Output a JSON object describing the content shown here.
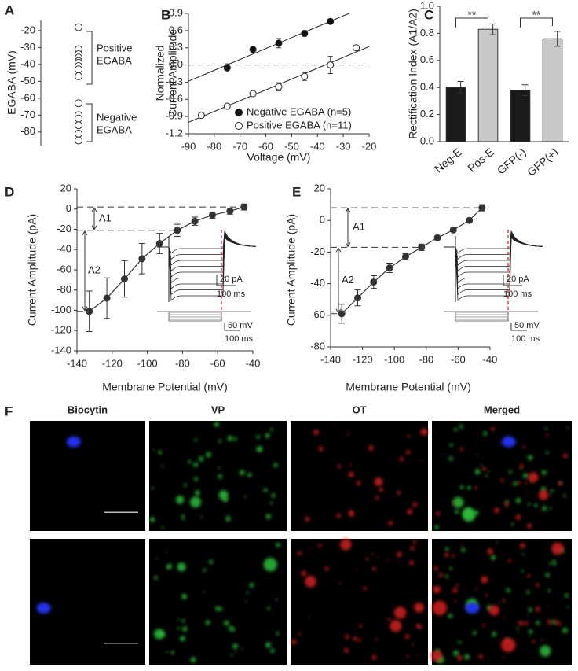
{
  "chart_data": [
    {
      "type": "strip",
      "panel": "A",
      "ylabel": "EGABA (mV)",
      "values": [
        -18,
        -31,
        -34,
        -36,
        -38,
        -39,
        -41,
        -43,
        -47,
        -63,
        -70,
        -72,
        -76,
        -81,
        -85
      ],
      "ylim": [
        -88,
        -14
      ],
      "yticks": [
        -20,
        -30,
        -40,
        -50,
        -60,
        -70,
        -80
      ],
      "annotations": [
        "Positive",
        "EGABA",
        "Negative",
        "EGABA"
      ]
    },
    {
      "type": "scatter",
      "panel": "B",
      "xlabel": "Voltage (mV)",
      "ylabel": [
        "Normalized",
        "Current Amplitude"
      ],
      "xlim": [
        -90,
        -20
      ],
      "xticks": [
        -90,
        -80,
        -70,
        -60,
        -50,
        -40,
        -30,
        -20
      ],
      "ylim": [
        -1.2,
        0.9
      ],
      "yticks": [
        0.9,
        0.6,
        0.3,
        {
          "value": 0,
          "label": "0.0"
        },
        -0.3,
        -0.6,
        -0.9,
        -1.2
      ],
      "series": [
        {
          "name": "Negative EGABA (n=5)",
          "color": "#111111",
          "x": [
            -75,
            -65,
            -55,
            -45,
            -35
          ],
          "values": [
            -0.05,
            0.27,
            0.38,
            0.55,
            0.76
          ],
          "errors": [
            0.07,
            0.04,
            0.08,
            0.05,
            0.04
          ]
        },
        {
          "name": "Positive EGABA (n=11)",
          "color": "#ffffff",
          "x": [
            -85,
            -75,
            -65,
            -55,
            -45,
            -35,
            -25
          ],
          "values": [
            -0.88,
            -0.72,
            -0.5,
            -0.38,
            -0.2,
            0.0,
            0.3
          ],
          "errors": [
            0.03,
            0.04,
            0.04,
            0.07,
            0.07,
            0.15,
            0.04
          ]
        }
      ]
    },
    {
      "type": "bar",
      "panel": "C",
      "ylabel": "Rectification Index (A1/A2)",
      "categories": [
        "Neg-E",
        "Pos-E",
        "GFP(-)",
        "GFP(+)"
      ],
      "values": [
        0.4,
        0.83,
        0.38,
        0.76
      ],
      "errors": [
        0.045,
        0.04,
        0.04,
        0.055
      ],
      "colors": [
        "#1a1a1a",
        "#c8c8c8",
        "#1a1a1a",
        "#c8c8c8"
      ],
      "ylim": [
        0,
        1
      ],
      "yticks": [
        {
          "value": 0,
          "label": "0.0"
        },
        0.2,
        0.4,
        0.6,
        0.8,
        {
          "value": 1,
          "label": "1.0"
        }
      ],
      "annotations": [
        "**",
        "**"
      ]
    },
    {
      "type": "line",
      "panel": "D",
      "xlabel": "Membrane Potential (mV)",
      "ylabel": "Current Amplitude (pA)",
      "color": "#333333",
      "x": [
        -133,
        -123,
        -113,
        -103,
        -93,
        -83,
        -73,
        -63,
        -53,
        -45
      ],
      "values": [
        -101,
        -88,
        -69,
        -49,
        -34,
        -21,
        -12,
        -6,
        -2,
        2
      ],
      "errors": [
        20,
        20,
        18,
        15,
        10,
        6,
        4,
        3,
        3,
        3
      ],
      "xlim": [
        -140,
        -40
      ],
      "xticks": [
        -140,
        -120,
        -100,
        -80,
        -60,
        -40
      ],
      "ylim": [
        -140,
        20
      ],
      "yticks": [
        20,
        0,
        -20,
        -40,
        -60,
        -80,
        -100,
        -120,
        -140
      ],
      "annotations": [
        "A1",
        "A2",
        "20 pA",
        "100 ms",
        "50 mV",
        "100 ms"
      ]
    },
    {
      "type": "line",
      "panel": "E",
      "xlabel": "Membrane Potential (mV)",
      "ylabel": "Current Amplitude (pA)",
      "color": "#333333",
      "x": [
        -133,
        -123,
        -113,
        -103,
        -93,
        -83,
        -73,
        -63,
        -53,
        -45
      ],
      "values": [
        -59,
        -49,
        -39,
        -30,
        -23,
        -17,
        -11,
        -6,
        0,
        8
      ],
      "errors": [
        6,
        5,
        4,
        3,
        2,
        2,
        1,
        1,
        1,
        2
      ],
      "xlim": [
        -140,
        -40
      ],
      "xticks": [
        -140,
        -120,
        -100,
        -80,
        -60,
        -40
      ],
      "ylim": [
        -80,
        20
      ],
      "yticks": [
        20,
        0,
        -20,
        -40,
        -60,
        -80
      ],
      "annotations": [
        "A1",
        "A2",
        "20 pA",
        "100 ms",
        "50 mV",
        "100 ms"
      ]
    }
  ],
  "panel_f": {
    "label": "F",
    "columns": [
      "Biocytin",
      "VP",
      "OT",
      "Merged"
    ]
  }
}
